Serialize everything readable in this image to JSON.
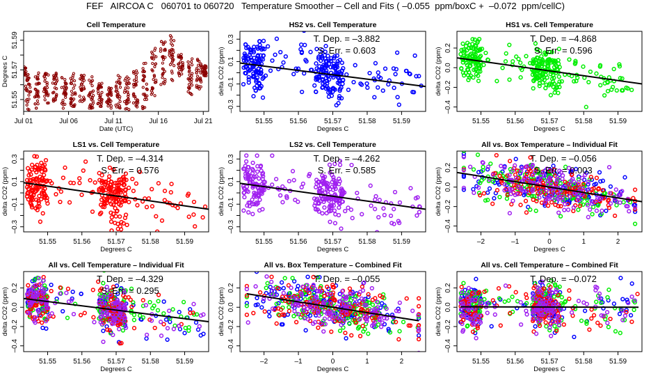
{
  "title": "FEF   AIRCOA C   060701 to 060720   Temperature Smoother – Cell and Fits ( –0.055  ppm/boxC +  –0.072  ppm/cellC)",
  "colors": {
    "HS2": "#0000ff",
    "HS1": "#00ee00",
    "LS1": "#ff0000",
    "LS2": "#a020f0",
    "cell": "#8b0000",
    "fit": "#000000"
  },
  "chart_data": [
    {
      "id": "cell-temperature",
      "type": "scatter",
      "title": "Cell Temperature",
      "xlabel": "Date (UTC)",
      "ylabel": "Degrees C",
      "x_kind": "day",
      "xlim": [
        0.0,
        20.6
      ],
      "ylim": [
        51.542,
        51.596
      ],
      "xticks": [
        0,
        5,
        10,
        15,
        20
      ],
      "xtick_labels": [
        "Jul 01",
        "Jul 06",
        "Jul 11",
        "Jul 16",
        "Jul 21"
      ],
      "yticks": [
        51.55,
        51.56,
        51.57,
        51.58,
        51.59
      ],
      "ytick_labels": [
        "51.55",
        "",
        "51.57",
        "",
        "51.59"
      ],
      "series": [
        {
          "name": "cell",
          "color_key": "cell",
          "daily_ranges": [
            {
              "day": 0.0,
              "min": 51.566,
              "max": 51.572
            },
            {
              "day": 0.5,
              "min": 51.543,
              "max": 51.568
            },
            {
              "day": 1.5,
              "min": 51.544,
              "max": 51.568
            },
            {
              "day": 2.5,
              "min": 51.547,
              "max": 51.568
            },
            {
              "day": 3.5,
              "min": 51.548,
              "max": 51.568
            },
            {
              "day": 4.5,
              "min": 51.544,
              "max": 51.565
            },
            {
              "day": 5.5,
              "min": 51.544,
              "max": 51.568
            },
            {
              "day": 6.5,
              "min": 51.548,
              "max": 51.567
            },
            {
              "day": 7.5,
              "min": 51.544,
              "max": 51.567
            },
            {
              "day": 8.5,
              "min": 51.545,
              "max": 51.561
            },
            {
              "day": 9.5,
              "min": 51.544,
              "max": 51.558
            },
            {
              "day": 10.5,
              "min": 51.543,
              "max": 51.567
            },
            {
              "day": 11.5,
              "min": 51.543,
              "max": 51.568
            },
            {
              "day": 12.5,
              "min": 51.545,
              "max": 51.571
            },
            {
              "day": 13.5,
              "min": 51.543,
              "max": 51.578
            },
            {
              "day": 14.5,
              "min": 51.552,
              "max": 51.586
            },
            {
              "day": 15.5,
              "min": 51.559,
              "max": 51.59
            },
            {
              "day": 16.5,
              "min": 51.561,
              "max": 51.595
            },
            {
              "day": 17.5,
              "min": 51.566,
              "max": 51.581
            },
            {
              "day": 18.5,
              "min": 51.552,
              "max": 51.579
            },
            {
              "day": 19.5,
              "min": 51.557,
              "max": 51.578
            },
            {
              "day": 20.1,
              "min": 51.566,
              "max": 51.573
            }
          ]
        }
      ]
    },
    {
      "id": "hs2-vs-cell",
      "type": "scatter",
      "title": "HS2 vs. Cell Temperature",
      "xlabel": "Degrees C",
      "ylabel": "delta CO2 (ppm)",
      "xlim": [
        51.543,
        51.597
      ],
      "ylim": [
        -0.345,
        0.37
      ],
      "xticks": [
        51.55,
        51.56,
        51.57,
        51.58,
        51.59
      ],
      "xtick_labels": [
        "51.55",
        "51.56",
        "51.57",
        "51.58",
        "51.59"
      ],
      "yticks": [
        -0.3,
        -0.2,
        -0.1,
        0.0,
        0.1,
        0.2,
        0.3
      ],
      "ytick_labels": [
        "–0.3",
        "",
        "–0.1",
        "",
        "0.1",
        "",
        "0.3"
      ],
      "annotations": [
        "T. Dep. =  –3.882",
        "S. Err. =  0.603"
      ],
      "series": [
        {
          "name": "HS2",
          "color_key": "HS2",
          "center": 0.03,
          "spread": 0.13
        }
      ],
      "fit": {
        "x": [
          51.543,
          51.597
        ],
        "y": [
          0.087,
          -0.123
        ]
      }
    },
    {
      "id": "hs1-vs-cell",
      "type": "scatter",
      "title": "HS1 vs. Cell Temperature",
      "xlabel": "Degrees C",
      "ylabel": "delta CO2 (ppm)",
      "xlim": [
        51.543,
        51.597
      ],
      "ylim": [
        -0.445,
        0.37
      ],
      "xticks": [
        51.55,
        51.56,
        51.57,
        51.58,
        51.59
      ],
      "xtick_labels": [
        "51.55",
        "51.56",
        "51.57",
        "51.58",
        "51.59"
      ],
      "yticks": [
        -0.4,
        -0.2,
        0.0,
        0.2
      ],
      "ytick_labels": [
        "–0.4",
        "–0.2",
        "0.0",
        "0.2"
      ],
      "annotations": [
        "T. Dep. =  –4.868",
        "S. Err. =  0.596"
      ],
      "series": [
        {
          "name": "HS1",
          "color_key": "HS1",
          "center": 0.03,
          "spread": 0.13
        }
      ],
      "fit": {
        "x": [
          51.543,
          51.597
        ],
        "y": [
          0.1,
          -0.165
        ]
      }
    },
    {
      "id": "ls1-vs-cell",
      "type": "scatter",
      "title": "LS1 vs. Cell Temperature",
      "xlabel": "Degrees C",
      "ylabel": "delta CO2 (ppm)",
      "xlim": [
        51.543,
        51.597
      ],
      "ylim": [
        -0.345,
        0.37
      ],
      "xticks": [
        51.55,
        51.56,
        51.57,
        51.58,
        51.59
      ],
      "xtick_labels": [
        "51.55",
        "51.56",
        "51.57",
        "51.58",
        "51.59"
      ],
      "yticks": [
        -0.3,
        -0.2,
        -0.1,
        0.0,
        0.1,
        0.2,
        0.3
      ],
      "ytick_labels": [
        "–0.3",
        "",
        "–0.1",
        "",
        "0.1",
        "",
        "0.3"
      ],
      "annotations": [
        "T. Dep. =  –4.314",
        "S. Err. =  0.576"
      ],
      "series": [
        {
          "name": "LS1",
          "color_key": "LS1",
          "center": 0.02,
          "spread": 0.13
        }
      ],
      "fit": {
        "x": [
          51.543,
          51.597
        ],
        "y": [
          0.09,
          -0.145
        ]
      }
    },
    {
      "id": "ls2-vs-cell",
      "type": "scatter",
      "title": "LS2 vs. Cell Temperature",
      "xlabel": "Degrees C",
      "ylabel": "delta CO2 (ppm)",
      "xlim": [
        51.543,
        51.597
      ],
      "ylim": [
        -0.345,
        0.37
      ],
      "xticks": [
        51.55,
        51.56,
        51.57,
        51.58,
        51.59
      ],
      "xtick_labels": [
        "51.55",
        "51.56",
        "51.57",
        "51.58",
        "51.59"
      ],
      "yticks": [
        -0.3,
        -0.2,
        -0.1,
        0.0,
        0.1,
        0.2,
        0.3
      ],
      "ytick_labels": [
        "–0.3",
        "",
        "–0.1",
        "",
        "0.1",
        "",
        "0.3"
      ],
      "annotations": [
        "T. Dep. =  –4.262",
        "S. Err. =  0.585"
      ],
      "series": [
        {
          "name": "LS2",
          "color_key": "LS2",
          "center": 0.02,
          "spread": 0.13
        }
      ],
      "fit": {
        "x": [
          51.543,
          51.597
        ],
        "y": [
          0.085,
          -0.145
        ]
      }
    },
    {
      "id": "all-vs-box-individual",
      "type": "scatter",
      "title": "All vs. Box Temperature – Individual Fit",
      "xlabel": "Degrees C",
      "ylabel": "delta CO2 (ppm)",
      "xlim": [
        -2.7,
        2.7
      ],
      "ylim": [
        -0.46,
        0.37
      ],
      "xticks": [
        -2,
        -1,
        0,
        1,
        2
      ],
      "xtick_labels": [
        "–2",
        "–1",
        "0",
        "1",
        "2"
      ],
      "yticks": [
        -0.4,
        -0.2,
        0.0,
        0.2
      ],
      "ytick_labels": [
        "–0.4",
        "–0.2",
        "0.0",
        "0.2"
      ],
      "annotations": [
        "T. Dep. =  –0.056",
        "S. Err. =  0.003"
      ],
      "series": [
        {
          "name": "HS2",
          "color_key": "HS2",
          "center": 0.0,
          "spread": 0.13
        },
        {
          "name": "HS1",
          "color_key": "HS1",
          "center": 0.0,
          "spread": 0.13
        },
        {
          "name": "LS1",
          "color_key": "LS1",
          "center": 0.0,
          "spread": 0.13
        },
        {
          "name": "LS2",
          "color_key": "LS2",
          "center": 0.0,
          "spread": 0.13
        }
      ],
      "fit": {
        "x": [
          -2.7,
          2.7
        ],
        "y": [
          0.15,
          -0.15
        ]
      }
    },
    {
      "id": "all-vs-cell-individual",
      "type": "scatter",
      "title": "All vs. Cell Temperature – Individual Fit",
      "xlabel": "Degrees C",
      "ylabel": "delta CO2 (ppm)",
      "xlim": [
        51.543,
        51.597
      ],
      "ylim": [
        -0.46,
        0.37
      ],
      "xticks": [
        51.55,
        51.56,
        51.57,
        51.58,
        51.59
      ],
      "xtick_labels": [
        "51.55",
        "51.56",
        "51.57",
        "51.58",
        "51.59"
      ],
      "yticks": [
        -0.4,
        -0.2,
        0.0,
        0.2
      ],
      "ytick_labels": [
        "–0.4",
        "–0.2",
        "0.0",
        "0.2"
      ],
      "annotations": [
        "T. Dep. =  –4.329",
        "S. Err. =  0.295"
      ],
      "series": [
        {
          "name": "HS2",
          "color_key": "HS2",
          "center": 0.02,
          "spread": 0.13
        },
        {
          "name": "HS1",
          "color_key": "HS1",
          "center": 0.02,
          "spread": 0.13
        },
        {
          "name": "LS1",
          "color_key": "LS1",
          "center": 0.02,
          "spread": 0.13
        },
        {
          "name": "LS2",
          "color_key": "LS2",
          "center": 0.02,
          "spread": 0.13
        }
      ],
      "fit": {
        "x": [
          51.543,
          51.597
        ],
        "y": [
          0.09,
          -0.15
        ]
      }
    },
    {
      "id": "all-vs-box-combined",
      "type": "scatter",
      "title": "All vs. Box Temperature – Combined Fit",
      "xlabel": "Degrees C",
      "ylabel": "delta CO2 (ppm)",
      "xlim": [
        -2.7,
        2.7
      ],
      "ylim": [
        -0.46,
        0.37
      ],
      "xticks": [
        -2,
        -1,
        0,
        1,
        2
      ],
      "xtick_labels": [
        "–2",
        "–1",
        "0",
        "1",
        "2"
      ],
      "yticks": [
        -0.4,
        -0.2,
        0.0,
        0.2
      ],
      "ytick_labels": [
        "–0.4",
        "–0.2",
        "0.0",
        "0.2"
      ],
      "annotations": [
        "T. Dep. =  –0.055"
      ],
      "series": [
        {
          "name": "HS2",
          "color_key": "HS2",
          "center": 0.0,
          "spread": 0.13
        },
        {
          "name": "HS1",
          "color_key": "HS1",
          "center": 0.0,
          "spread": 0.13
        },
        {
          "name": "LS1",
          "color_key": "LS1",
          "center": 0.0,
          "spread": 0.13
        },
        {
          "name": "LS2",
          "color_key": "LS2",
          "center": 0.0,
          "spread": 0.13
        }
      ],
      "fit": {
        "x": [
          -2.5,
          2.5
        ],
        "y": [
          0.14,
          -0.14
        ]
      }
    },
    {
      "id": "all-vs-cell-combined",
      "type": "scatter",
      "title": "All vs. Cell Temperature – Combined Fit",
      "xlabel": "Degrees C",
      "ylabel": "delta CO2 (ppm)",
      "xlim": [
        51.543,
        51.597
      ],
      "ylim": [
        -0.46,
        0.37
      ],
      "xticks": [
        51.55,
        51.56,
        51.57,
        51.58,
        51.59
      ],
      "xtick_labels": [
        "51.55",
        "51.56",
        "51.57",
        "51.58",
        "51.59"
      ],
      "yticks": [
        -0.4,
        -0.2,
        0.0,
        0.2
      ],
      "ytick_labels": [
        "–0.4",
        "–0.2",
        "0.0",
        "0.2"
      ],
      "annotations": [
        "T. Dep. =  –0.072"
      ],
      "series": [
        {
          "name": "HS2",
          "color_key": "HS2",
          "center": 0.02,
          "spread": 0.13
        },
        {
          "name": "HS1",
          "color_key": "HS1",
          "center": 0.02,
          "spread": 0.13
        },
        {
          "name": "LS1",
          "color_key": "LS1",
          "center": 0.02,
          "spread": 0.13
        },
        {
          "name": "LS2",
          "color_key": "LS2",
          "center": 0.02,
          "spread": 0.13
        }
      ],
      "fit": {
        "x": [
          51.544,
          51.596
        ],
        "y": [
          0.005,
          0.0
        ]
      }
    }
  ]
}
